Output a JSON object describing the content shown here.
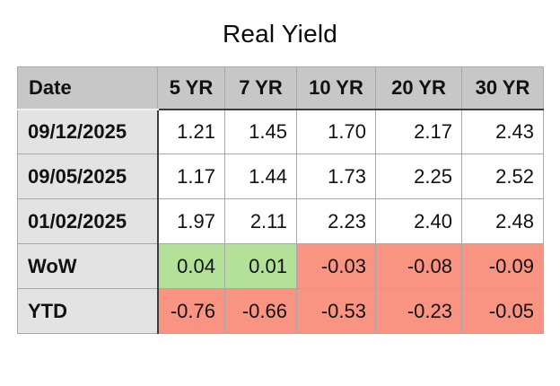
{
  "title": "Real Yield",
  "chart_data": {
    "type": "table",
    "title": "Real Yield",
    "columns": [
      "Date",
      "5 YR",
      "7 YR",
      "10 YR",
      "20 YR",
      "30 YR"
    ],
    "rows": [
      {
        "label": "09/12/2025",
        "values": [
          "1.21",
          "1.45",
          "1.70",
          "2.17",
          "2.43"
        ],
        "tones": [
          "none",
          "none",
          "none",
          "none",
          "none"
        ]
      },
      {
        "label": "09/05/2025",
        "values": [
          "1.17",
          "1.44",
          "1.73",
          "2.25",
          "2.52"
        ],
        "tones": [
          "none",
          "none",
          "none",
          "none",
          "none"
        ]
      },
      {
        "label": "01/02/2025",
        "values": [
          "1.97",
          "2.11",
          "2.23",
          "2.40",
          "2.48"
        ],
        "tones": [
          "none",
          "none",
          "none",
          "none",
          "none"
        ]
      },
      {
        "label": "WoW",
        "values": [
          "0.04",
          "0.01",
          "-0.03",
          "-0.08",
          "-0.09"
        ],
        "tones": [
          "pos",
          "pos",
          "neg",
          "neg",
          "neg"
        ]
      },
      {
        "label": "YTD",
        "values": [
          "-0.76",
          "-0.66",
          "-0.53",
          "-0.23",
          "-0.05"
        ],
        "tones": [
          "neg",
          "neg",
          "neg",
          "neg",
          "neg"
        ]
      }
    ],
    "colors": {
      "header_bg": "#c7c7c7",
      "label_bg": "#e3e3e3",
      "positive_bg": "#b4e19a",
      "negative_bg": "#f99483",
      "grid_border": "#a9a9a9",
      "dark_border": "#3c3c3c"
    }
  }
}
